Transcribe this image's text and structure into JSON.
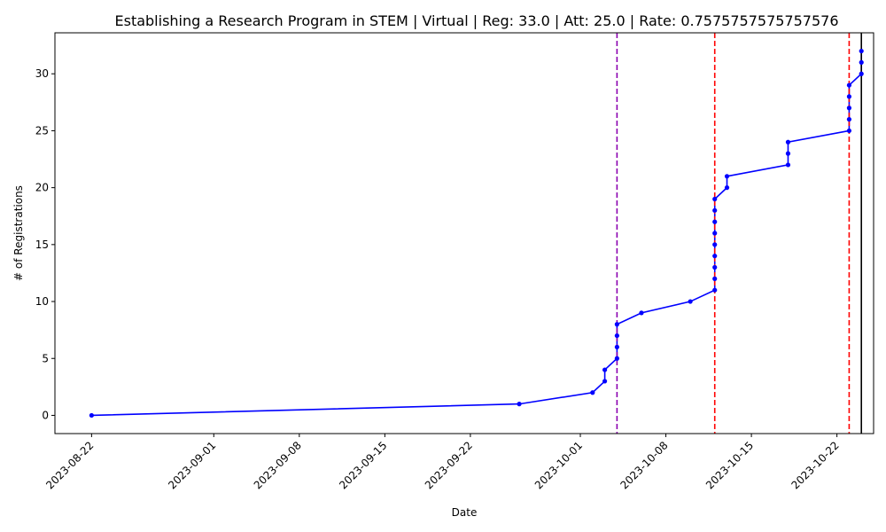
{
  "chart_data": {
    "type": "line",
    "title": "Establishing a Research Program in STEM | Virtual | Reg: 33.0 | Att: 25.0 | Rate: 0.7575757575757576",
    "xlabel": "Date",
    "ylabel": "# of Registrations",
    "x_range": [
      "2023-08-19",
      "2023-10-25"
    ],
    "ylim": [
      -1.6,
      33.6
    ],
    "x_ticks": [
      "2023-08-22",
      "2023-09-01",
      "2023-09-08",
      "2023-09-15",
      "2023-09-22",
      "2023-10-01",
      "2023-10-08",
      "2023-10-15",
      "2023-10-22"
    ],
    "y_ticks": [
      0,
      5,
      10,
      15,
      20,
      25,
      30
    ],
    "grid": false,
    "series": [
      {
        "color": "#0000ff",
        "points": [
          [
            "2023-08-22",
            0
          ],
          [
            "2023-09-26",
            1
          ],
          [
            "2023-10-02",
            2
          ],
          [
            "2023-10-03",
            3
          ],
          [
            "2023-10-03",
            4
          ],
          [
            "2023-10-04",
            5
          ],
          [
            "2023-10-04",
            6
          ],
          [
            "2023-10-04",
            7
          ],
          [
            "2023-10-04",
            8
          ],
          [
            "2023-10-06",
            9
          ],
          [
            "2023-10-10",
            10
          ],
          [
            "2023-10-12",
            11
          ],
          [
            "2023-10-12",
            12
          ],
          [
            "2023-10-12",
            13
          ],
          [
            "2023-10-12",
            14
          ],
          [
            "2023-10-12",
            15
          ],
          [
            "2023-10-12",
            16
          ],
          [
            "2023-10-12",
            17
          ],
          [
            "2023-10-12",
            18
          ],
          [
            "2023-10-12",
            19
          ],
          [
            "2023-10-13",
            20
          ],
          [
            "2023-10-13",
            21
          ],
          [
            "2023-10-18",
            22
          ],
          [
            "2023-10-18",
            23
          ],
          [
            "2023-10-18",
            24
          ],
          [
            "2023-10-23",
            25
          ],
          [
            "2023-10-23",
            26
          ],
          [
            "2023-10-23",
            27
          ],
          [
            "2023-10-23",
            28
          ],
          [
            "2023-10-23",
            29
          ],
          [
            "2023-10-24",
            30
          ],
          [
            "2023-10-24",
            31
          ],
          [
            "2023-10-24",
            32
          ]
        ]
      }
    ],
    "vertical_lines": [
      {
        "date": "2023-10-04",
        "color": "#8b00b0",
        "style": "dashed"
      },
      {
        "date": "2023-10-12",
        "color": "#ff0000",
        "style": "dashed"
      },
      {
        "date": "2023-10-23",
        "color": "#ff0000",
        "style": "dashed"
      },
      {
        "date": "2023-10-24",
        "color": "#000000",
        "style": "solid"
      }
    ]
  }
}
